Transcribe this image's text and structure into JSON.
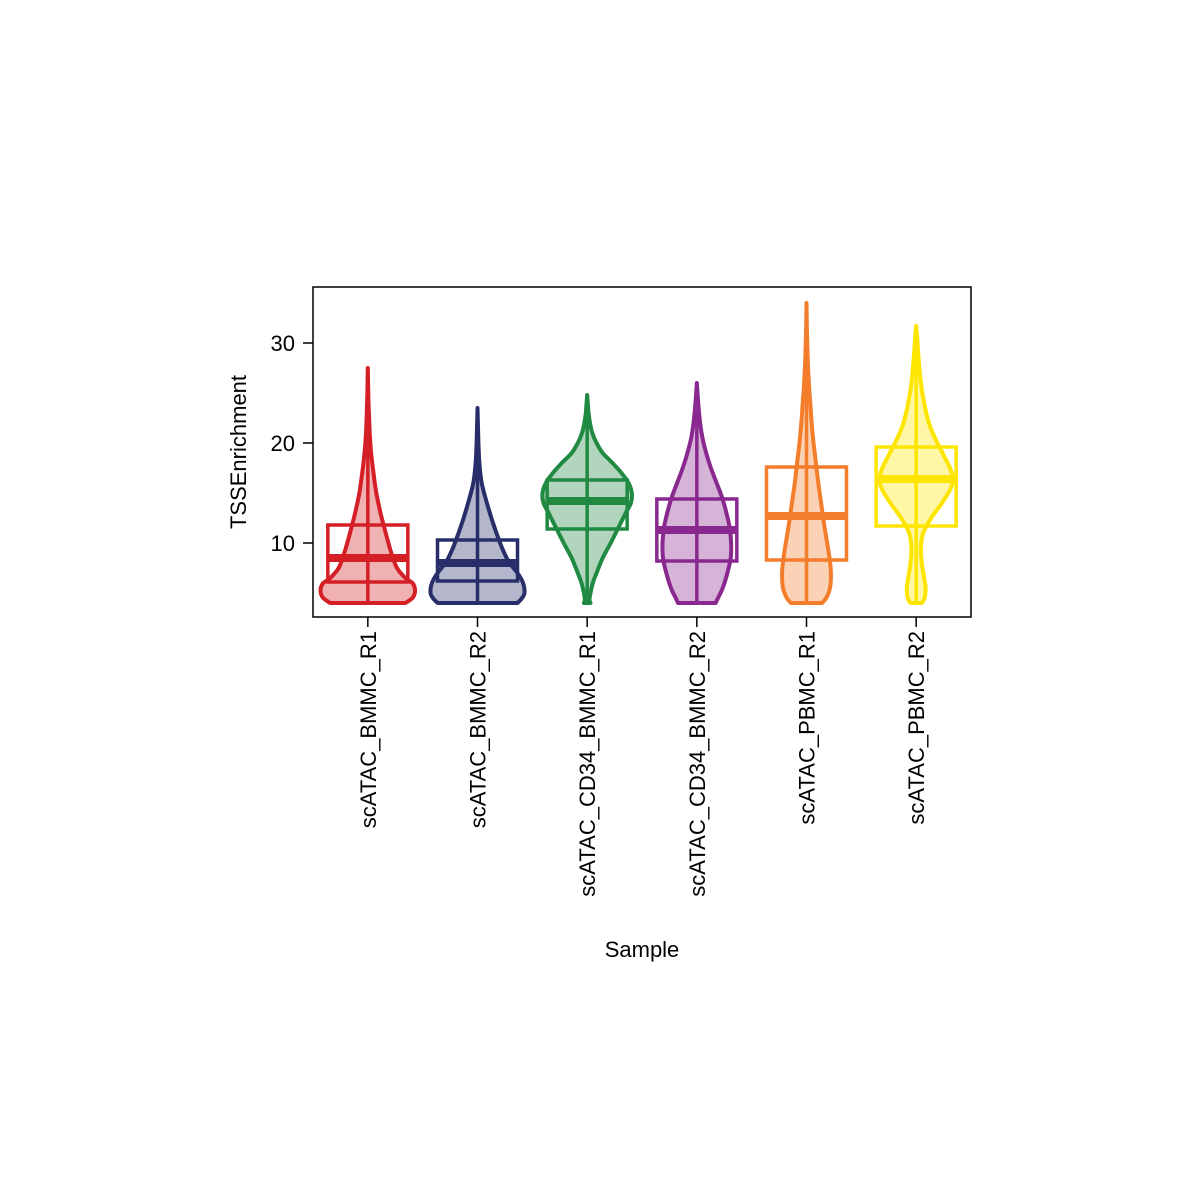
{
  "chart_data": {
    "type": "violin",
    "xlabel": "Sample",
    "ylabel": "TSSEnrichment",
    "ylim": [
      2.6,
      35.6
    ],
    "yticks": [
      10,
      20,
      30
    ],
    "grid": false,
    "legend": "none",
    "categories": [
      "scATAC_BMMC_R1",
      "scATAC_BMMC_R2",
      "scATAC_CD34_BMMC_R1",
      "scATAC_CD34_BMMC_R2",
      "scATAC_PBMC_R1",
      "scATAC_PBMC_R2"
    ],
    "colors": [
      "#d51f26",
      "#272e6a",
      "#208a42",
      "#89288f",
      "#f47d2b",
      "#fee500"
    ],
    "boxes": [
      {
        "min": 4.0,
        "q1": 6.1,
        "median": 8.5,
        "q3": 11.8,
        "max": 27.5
      },
      {
        "min": 4.0,
        "q1": 6.2,
        "median": 8.0,
        "q3": 10.3,
        "max": 23.5
      },
      {
        "min": 4.0,
        "q1": 11.4,
        "median": 14.2,
        "q3": 16.3,
        "max": 24.8
      },
      {
        "min": 4.0,
        "q1": 8.2,
        "median": 11.3,
        "q3": 14.4,
        "max": 26.0
      },
      {
        "min": 4.0,
        "q1": 8.3,
        "median": 12.7,
        "q3": 17.6,
        "max": 34.0
      },
      {
        "min": 4.0,
        "q1": 11.7,
        "median": 16.4,
        "q3": 19.6,
        "max": 31.7
      }
    ],
    "violins": [
      [
        [
          4.0,
          0.8
        ],
        [
          4.5,
          0.95
        ],
        [
          5.0,
          1.0
        ],
        [
          5.5,
          1.0
        ],
        [
          6.0,
          0.95
        ],
        [
          6.5,
          0.8
        ],
        [
          7.5,
          0.62
        ],
        [
          9.0,
          0.5
        ],
        [
          11.0,
          0.38
        ],
        [
          13.0,
          0.27
        ],
        [
          15.0,
          0.18
        ],
        [
          17.0,
          0.12
        ],
        [
          19.0,
          0.07
        ],
        [
          21.0,
          0.04
        ],
        [
          24.0,
          0.015
        ],
        [
          27.5,
          0.0
        ]
      ],
      [
        [
          4.0,
          0.85
        ],
        [
          4.5,
          0.95
        ],
        [
          5.0,
          1.0
        ],
        [
          6.0,
          0.97
        ],
        [
          7.0,
          0.85
        ],
        [
          8.0,
          0.68
        ],
        [
          9.0,
          0.57
        ],
        [
          10.0,
          0.48
        ],
        [
          12.0,
          0.33
        ],
        [
          14.0,
          0.2
        ],
        [
          16.0,
          0.09
        ],
        [
          18.0,
          0.04
        ],
        [
          20.0,
          0.02
        ],
        [
          23.5,
          0.0
        ]
      ],
      [
        [
          4.0,
          0.07
        ],
        [
          4.3,
          0.05
        ],
        [
          5.0,
          0.07
        ],
        [
          6.0,
          0.12
        ],
        [
          7.0,
          0.2
        ],
        [
          8.5,
          0.33
        ],
        [
          10.0,
          0.5
        ],
        [
          11.5,
          0.66
        ],
        [
          13.0,
          0.82
        ],
        [
          14.0,
          0.93
        ],
        [
          15.0,
          0.95
        ],
        [
          16.0,
          0.88
        ],
        [
          17.0,
          0.73
        ],
        [
          18.0,
          0.54
        ],
        [
          19.0,
          0.33
        ],
        [
          20.0,
          0.2
        ],
        [
          21.0,
          0.11
        ],
        [
          22.0,
          0.06
        ],
        [
          23.0,
          0.03
        ],
        [
          24.8,
          0.0
        ]
      ],
      [
        [
          4.0,
          0.4
        ],
        [
          4.5,
          0.45
        ],
        [
          5.5,
          0.55
        ],
        [
          7.0,
          0.65
        ],
        [
          8.5,
          0.72
        ],
        [
          10.0,
          0.73
        ],
        [
          11.5,
          0.7
        ],
        [
          13.0,
          0.63
        ],
        [
          14.5,
          0.54
        ],
        [
          16.0,
          0.42
        ],
        [
          17.5,
          0.3
        ],
        [
          19.0,
          0.2
        ],
        [
          20.5,
          0.12
        ],
        [
          22.0,
          0.07
        ],
        [
          24.0,
          0.03
        ],
        [
          26.0,
          0.0
        ]
      ],
      [
        [
          4.0,
          0.33
        ],
        [
          4.5,
          0.42
        ],
        [
          5.5,
          0.5
        ],
        [
          7.0,
          0.52
        ],
        [
          8.5,
          0.49
        ],
        [
          10.0,
          0.44
        ],
        [
          12.0,
          0.37
        ],
        [
          14.0,
          0.31
        ],
        [
          16.0,
          0.25
        ],
        [
          18.0,
          0.2
        ],
        [
          20.0,
          0.15
        ],
        [
          22.0,
          0.11
        ],
        [
          24.0,
          0.08
        ],
        [
          26.0,
          0.05
        ],
        [
          28.0,
          0.03
        ],
        [
          31.0,
          0.01
        ],
        [
          34.0,
          0.0
        ]
      ],
      [
        [
          4.0,
          0.12
        ],
        [
          4.5,
          0.18
        ],
        [
          5.5,
          0.2
        ],
        [
          6.5,
          0.17
        ],
        [
          8.0,
          0.12
        ],
        [
          9.5,
          0.1
        ],
        [
          11.0,
          0.15
        ],
        [
          12.5,
          0.32
        ],
        [
          14.0,
          0.55
        ],
        [
          15.5,
          0.74
        ],
        [
          16.5,
          0.78
        ],
        [
          17.5,
          0.72
        ],
        [
          19.0,
          0.56
        ],
        [
          20.5,
          0.4
        ],
        [
          22.0,
          0.27
        ],
        [
          24.0,
          0.17
        ],
        [
          26.0,
          0.1
        ],
        [
          28.0,
          0.06
        ],
        [
          30.0,
          0.03
        ],
        [
          31.7,
          0.0
        ]
      ]
    ]
  }
}
